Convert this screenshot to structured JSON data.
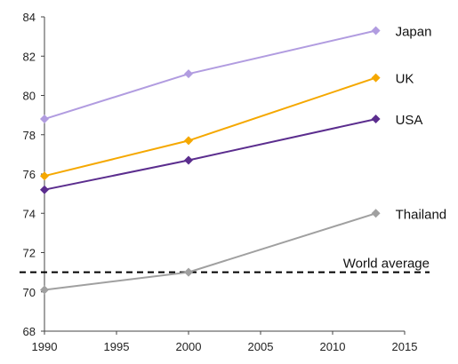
{
  "chart_data": {
    "type": "line",
    "title": "",
    "xlabel": "",
    "ylabel": "",
    "xlim": [
      1990,
      2015
    ],
    "ylim": [
      68,
      84
    ],
    "xticks": [
      1990,
      1995,
      2000,
      2005,
      2010,
      2015
    ],
    "yticks": [
      68,
      70,
      72,
      74,
      76,
      78,
      80,
      82,
      84
    ],
    "grid": false,
    "legend": "labels at line ends",
    "series": [
      {
        "name": "Japan",
        "color": "#b19ce0",
        "x": [
          1990,
          2000,
          2013
        ],
        "values": [
          78.8,
          81.1,
          83.3
        ]
      },
      {
        "name": "UK",
        "color": "#f5a800",
        "x": [
          1990,
          2000,
          2013
        ],
        "values": [
          75.9,
          77.7,
          80.9
        ]
      },
      {
        "name": "USA",
        "color": "#5b2d8e",
        "x": [
          1990,
          2000,
          2013
        ],
        "values": [
          75.2,
          76.7,
          78.8
        ]
      },
      {
        "name": "Thailand",
        "color": "#a0a0a0",
        "x": [
          1990,
          2000,
          2013
        ],
        "values": [
          70.1,
          71.0,
          74.0
        ]
      }
    ],
    "reference_line": {
      "label": "World average",
      "value": 71.0,
      "style": "dashed",
      "color": "#000000"
    }
  }
}
